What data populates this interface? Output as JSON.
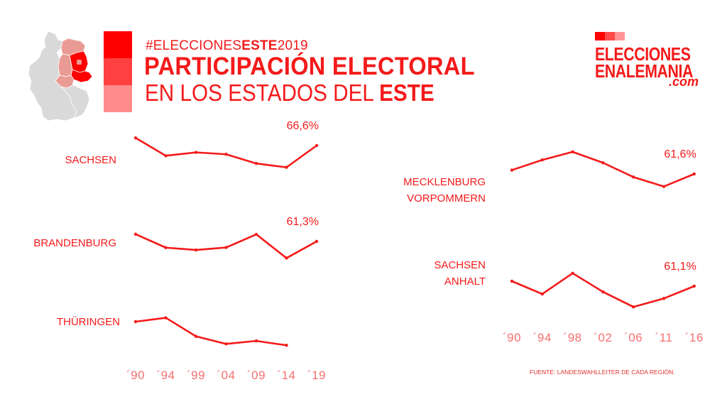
{
  "header": {
    "hashtag_prefix": "#ELECCIONES",
    "hashtag_bold": "ESTE",
    "hashtag_suffix": "2019",
    "title_line1": "PARTICIPACIÓN ELECTORAL",
    "title_line2_regular": "EN LOS ESTADOS DEL ",
    "title_line2_bold": "ESTE"
  },
  "legend_swatches": [
    "#ff0000",
    "#ff4040",
    "#ff8c8c"
  ],
  "logo": {
    "line1": "ELECCIONES",
    "line2": "ENALEMANIA",
    "line3": ".com",
    "squares": [
      "#ff0000",
      "#ff4a4a",
      "#ff9494"
    ]
  },
  "colors": {
    "accent": "#f41a1a",
    "tick_label": "#f77070",
    "map_gray": "#d9d9d9",
    "map_light_red": "#ea9a94",
    "map_red": "#ff0000"
  },
  "source": "FUENTE: LANDESWAHLLEITER DE CADA REGIÓN.",
  "chart_data": [
    {
      "type": "line",
      "title": "SACHSEN",
      "categories": [
        "´90",
        "´94",
        "´99",
        "´04",
        "´09",
        "´14",
        "´19"
      ],
      "values": [
        72.8,
        58.4,
        61.1,
        59.6,
        52.2,
        49.1,
        66.6
      ],
      "end_label": "66,6%"
    },
    {
      "type": "line",
      "title": "BRANDENBURG",
      "categories": [
        "´90",
        "´94",
        "´99",
        "´04",
        "´09",
        "´14",
        "´19"
      ],
      "values": [
        67.1,
        56.3,
        54.4,
        56.4,
        67.0,
        47.9,
        61.3
      ],
      "end_label": "61,3%"
    },
    {
      "type": "line",
      "title": "THÜRINGEN",
      "categories": [
        "´90",
        "´94",
        "´99",
        "´04",
        "´09",
        "´14",
        "´19"
      ],
      "values": [
        71.7,
        74.8,
        59.9,
        53.8,
        56.2,
        52.7,
        null
      ],
      "end_label": ""
    },
    {
      "type": "line",
      "title": "MECKLENBURG VORPOMMERN",
      "categories": [
        "´90",
        "´94",
        "´98",
        "´02",
        "´06",
        "´11",
        "´16"
      ],
      "values": [
        64.7,
        72.9,
        79.4,
        70.6,
        59.1,
        51.5,
        61.6
      ],
      "end_label": "61,6%"
    },
    {
      "type": "line",
      "title": "SACHSEN ANHALT",
      "categories": [
        "´90",
        "´94",
        "´98",
        "´02",
        "´06",
        "´11",
        "´16"
      ],
      "values": [
        65.1,
        54.8,
        71.5,
        56.5,
        44.4,
        51.2,
        61.1
      ],
      "end_label": "61,1%"
    }
  ]
}
